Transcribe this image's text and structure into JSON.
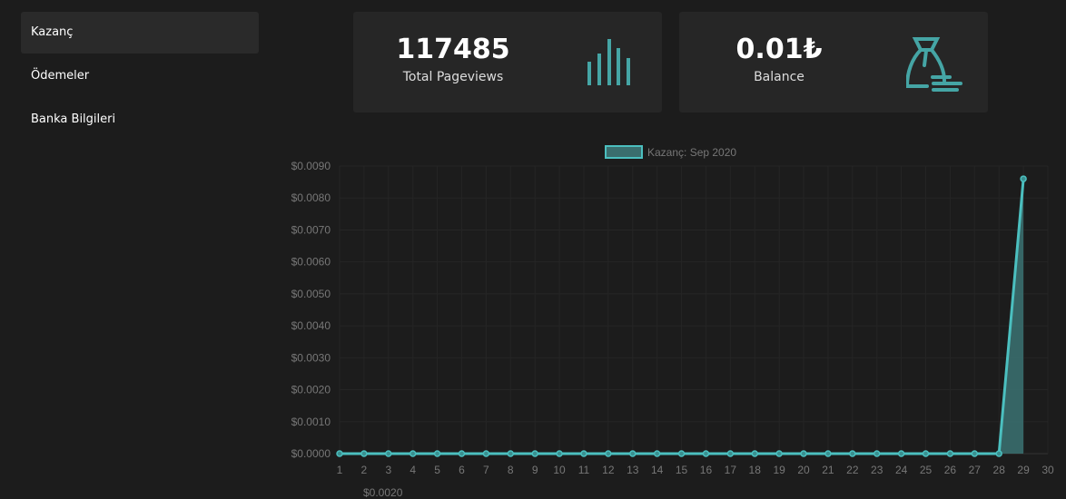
{
  "sidebar": {
    "items": [
      {
        "label": "Kazanç",
        "active": true
      },
      {
        "label": "Ödemeler"
      },
      {
        "label": "Banka Bilgileri"
      }
    ]
  },
  "cards": [
    {
      "value": "117485",
      "label": "Total Pageviews",
      "icon": "bar-chart-icon"
    },
    {
      "value": "0.01₺",
      "label": "Balance",
      "icon": "money-bag-icon"
    }
  ],
  "accent": "#4bbfbf",
  "cut_label": "$0.0020",
  "chart_data": {
    "type": "line",
    "legend": "Kazanç: Sep 2020",
    "legend_position": "top",
    "x": [
      1,
      2,
      3,
      4,
      5,
      6,
      7,
      8,
      9,
      10,
      11,
      12,
      13,
      14,
      15,
      16,
      17,
      18,
      19,
      20,
      21,
      22,
      23,
      24,
      25,
      26,
      27,
      28,
      29,
      30
    ],
    "series": [
      {
        "name": "Kazanç: Sep 2020",
        "values": [
          0,
          0,
          0,
          0,
          0,
          0,
          0,
          0,
          0,
          0,
          0,
          0,
          0,
          0,
          0,
          0,
          0,
          0,
          0,
          0,
          0,
          0,
          0,
          0,
          0,
          0,
          0,
          0,
          0.0086,
          null
        ]
      }
    ],
    "yticks": [
      "$0.0000",
      "$0.0010",
      "$0.0020",
      "$0.0030",
      "$0.0040",
      "$0.0050",
      "$0.0060",
      "$0.0070",
      "$0.0080",
      "$0.0090"
    ],
    "ylim": [
      0,
      0.009
    ],
    "grid": true
  }
}
